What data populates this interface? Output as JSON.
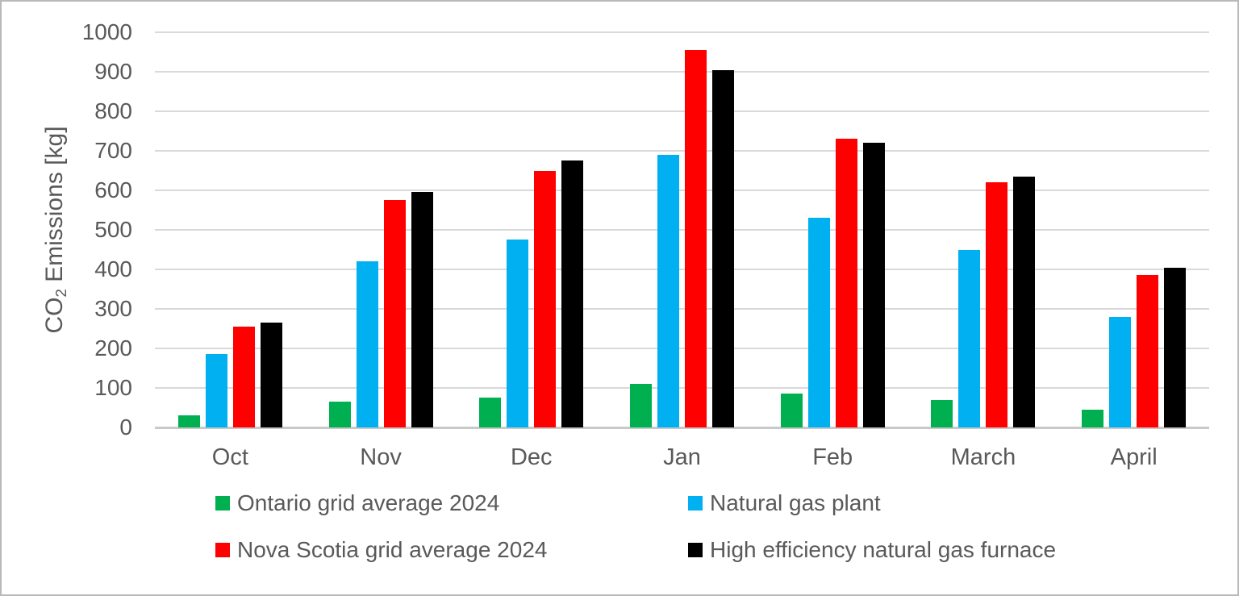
{
  "chart_data": {
    "type": "bar",
    "title": "",
    "categories": [
      "Oct",
      "Nov",
      "Dec",
      "Jan",
      "Feb",
      "March",
      "April"
    ],
    "series": [
      {
        "name": "Ontario grid average 2024",
        "color": "#00B050",
        "values": [
          30,
          65,
          75,
          110,
          85,
          70,
          45
        ]
      },
      {
        "name": "Natural gas plant",
        "color": "#00B0F0",
        "values": [
          185,
          420,
          475,
          690,
          530,
          450,
          280
        ]
      },
      {
        "name": "Nova Scotia grid average 2024",
        "color": "#FF0000",
        "values": [
          255,
          575,
          650,
          955,
          730,
          620,
          385
        ]
      },
      {
        "name": "High efficiency natural gas furnace",
        "color": "#000000",
        "values": [
          265,
          595,
          675,
          905,
          720,
          635,
          405
        ]
      }
    ],
    "xlabel": "",
    "ylabel": "CO2 Emissions [kg]",
    "ylabel_parts": {
      "prefix": "CO",
      "sub": "2",
      "suffix": " Emissions [kg]"
    },
    "yticks": [
      0,
      100,
      200,
      300,
      400,
      500,
      600,
      700,
      800,
      900,
      1000
    ],
    "ylim": [
      0,
      1000
    ],
    "grid": "horizontal",
    "legend_position": "bottom",
    "colors": {
      "text": "#595959",
      "gridline": "#d9d9d9",
      "axis_line": "#c9c9c9",
      "background": "#ffffff",
      "border": "#b9b9b9"
    }
  }
}
